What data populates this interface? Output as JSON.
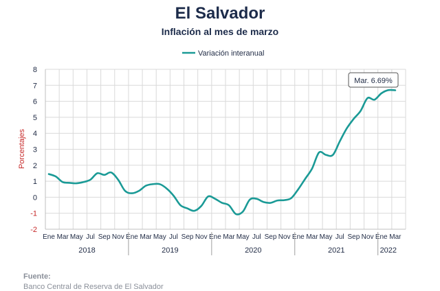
{
  "header": {
    "title": "El Salvador",
    "subtitle": "Inflación al mes de marzo"
  },
  "source": {
    "label": "Fuente:",
    "text": "Banco Central de Reserva de El Salvador"
  },
  "colors": {
    "series": "#1a9a96",
    "axis_label": "#c62828",
    "grid": "#d9d9d9",
    "text": "#1f2a44"
  },
  "chart_data": {
    "type": "line",
    "title": "El Salvador",
    "subtitle": "Inflación al mes de marzo",
    "ylabel": "Porcentajes",
    "xlabel": "",
    "ylim": [
      -2,
      8
    ],
    "yticks": [
      -2,
      -1,
      0,
      1,
      2,
      3,
      4,
      5,
      6,
      7,
      8
    ],
    "grid": true,
    "legend_position": "top-center",
    "x_month_labels": [
      "Ene",
      "Mar",
      "May",
      "Jul",
      "Sep",
      "Nov",
      "Ene",
      "Mar",
      "May",
      "Jul",
      "Sep",
      "Nov",
      "Ene",
      "Mar",
      "May",
      "Jul",
      "Sep",
      "Nov",
      "Ene",
      "Mar",
      "May",
      "Jul",
      "Sep",
      "Nov",
      "Ene",
      "Mar"
    ],
    "years": [
      "2018",
      "2019",
      "2020",
      "2021",
      "2022"
    ],
    "x": [
      "2018-01",
      "2018-02",
      "2018-03",
      "2018-04",
      "2018-05",
      "2018-06",
      "2018-07",
      "2018-08",
      "2018-09",
      "2018-10",
      "2018-11",
      "2018-12",
      "2019-01",
      "2019-02",
      "2019-03",
      "2019-04",
      "2019-05",
      "2019-06",
      "2019-07",
      "2019-08",
      "2019-09",
      "2019-10",
      "2019-11",
      "2019-12",
      "2020-01",
      "2020-02",
      "2020-03",
      "2020-04",
      "2020-05",
      "2020-06",
      "2020-07",
      "2020-08",
      "2020-09",
      "2020-10",
      "2020-11",
      "2020-12",
      "2021-01",
      "2021-02",
      "2021-03",
      "2021-04",
      "2021-05",
      "2021-06",
      "2021-07",
      "2021-08",
      "2021-09",
      "2021-10",
      "2021-11",
      "2021-12",
      "2022-01",
      "2022-02",
      "2022-03"
    ],
    "series": [
      {
        "name": "Variación interanual",
        "values": [
          1.45,
          1.3,
          0.95,
          0.9,
          0.87,
          0.95,
          1.1,
          1.5,
          1.4,
          1.55,
          1.1,
          0.4,
          0.25,
          0.4,
          0.72,
          0.82,
          0.82,
          0.55,
          0.1,
          -0.5,
          -0.7,
          -0.85,
          -0.55,
          0.05,
          -0.1,
          -0.35,
          -0.5,
          -1.05,
          -0.9,
          -0.15,
          -0.1,
          -0.3,
          -0.35,
          -0.2,
          -0.18,
          -0.05,
          0.5,
          1.15,
          1.8,
          2.8,
          2.65,
          2.65,
          3.5,
          4.3,
          4.9,
          5.4,
          6.2,
          6.1,
          6.5,
          6.7,
          6.69
        ]
      }
    ],
    "annotations": [
      {
        "label": "Mar. 6.69%",
        "x": "2022-03",
        "y": 6.69
      }
    ]
  }
}
